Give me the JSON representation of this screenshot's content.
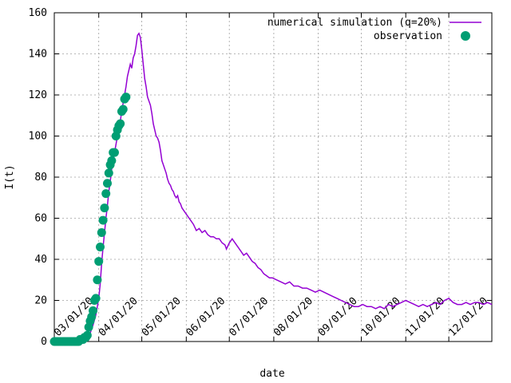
{
  "chart_data": {
    "type": "line+scatter",
    "title": "",
    "xlabel": "date",
    "ylabel": "I(t)",
    "x_axis": {
      "type": "date",
      "range": [
        "2020-03-01",
        "2020-12-31"
      ],
      "ticks": [
        "2020-03-01",
        "2020-04-01",
        "2020-05-01",
        "2020-06-01",
        "2020-07-01",
        "2020-08-01",
        "2020-09-01",
        "2020-10-01",
        "2020-11-01",
        "2020-12-01"
      ],
      "tick_labels": [
        "03/01/20",
        "04/01/20",
        "05/01/20",
        "06/01/20",
        "07/01/20",
        "08/01/20",
        "09/01/20",
        "10/01/20",
        "11/01/20",
        "12/01/20"
      ],
      "tick_label_rotation_deg": -45
    },
    "y_axis": {
      "range": [
        0,
        160
      ],
      "ticks": [
        0,
        20,
        40,
        60,
        80,
        100,
        120,
        140,
        160
      ],
      "tick_labels": [
        "0",
        "20",
        "40",
        "60",
        "80",
        "100",
        "120",
        "140",
        "160"
      ]
    },
    "grid": true,
    "legend_position": "top-right",
    "series": [
      {
        "name": "numerical simulation (q=20%)",
        "kind": "line",
        "color": "#9400d3",
        "points": [
          [
            "2020-03-01",
            0
          ],
          [
            "2020-03-10",
            0
          ],
          [
            "2020-03-16",
            0.5
          ],
          [
            "2020-03-21",
            1
          ],
          [
            "2020-03-24",
            2
          ],
          [
            "2020-03-26",
            4
          ],
          [
            "2020-03-28",
            8
          ],
          [
            "2020-03-30",
            13
          ],
          [
            "2020-03-31",
            17
          ],
          [
            "2020-04-01",
            21
          ],
          [
            "2020-04-02",
            28
          ],
          [
            "2020-04-03",
            38
          ],
          [
            "2020-04-04",
            46
          ],
          [
            "2020-04-05",
            53
          ],
          [
            "2020-04-06",
            60
          ],
          [
            "2020-04-07",
            66
          ],
          [
            "2020-04-08",
            73
          ],
          [
            "2020-04-09",
            78
          ],
          [
            "2020-04-10",
            84
          ],
          [
            "2020-04-11",
            88
          ],
          [
            "2020-04-12",
            92
          ],
          [
            "2020-04-13",
            96
          ],
          [
            "2020-04-14",
            100
          ],
          [
            "2020-04-15",
            104
          ],
          [
            "2020-04-16",
            107
          ],
          [
            "2020-04-17",
            112
          ],
          [
            "2020-04-18",
            116
          ],
          [
            "2020-04-19",
            120
          ],
          [
            "2020-04-20",
            124
          ],
          [
            "2020-04-21",
            129
          ],
          [
            "2020-04-22",
            132
          ],
          [
            "2020-04-23",
            135
          ],
          [
            "2020-04-24",
            133
          ],
          [
            "2020-04-25",
            138
          ],
          [
            "2020-04-26",
            140
          ],
          [
            "2020-04-27",
            144
          ],
          [
            "2020-04-28",
            149
          ],
          [
            "2020-04-29",
            150
          ],
          [
            "2020-04-30",
            148
          ],
          [
            "2020-05-01",
            142
          ],
          [
            "2020-05-02",
            135
          ],
          [
            "2020-05-03",
            128
          ],
          [
            "2020-05-04",
            124
          ],
          [
            "2020-05-05",
            119
          ],
          [
            "2020-05-06",
            117
          ],
          [
            "2020-05-07",
            115
          ],
          [
            "2020-05-08",
            111
          ],
          [
            "2020-05-09",
            106
          ],
          [
            "2020-05-10",
            103
          ],
          [
            "2020-05-11",
            100
          ],
          [
            "2020-05-12",
            99
          ],
          [
            "2020-05-13",
            97
          ],
          [
            "2020-05-14",
            93
          ],
          [
            "2020-05-15",
            88
          ],
          [
            "2020-05-16",
            86
          ],
          [
            "2020-05-17",
            84
          ],
          [
            "2020-05-18",
            82
          ],
          [
            "2020-05-19",
            79
          ],
          [
            "2020-05-20",
            77
          ],
          [
            "2020-05-21",
            76
          ],
          [
            "2020-05-22",
            74
          ],
          [
            "2020-05-23",
            73
          ],
          [
            "2020-05-24",
            71
          ],
          [
            "2020-05-25",
            70
          ],
          [
            "2020-05-26",
            71
          ],
          [
            "2020-05-27",
            68
          ],
          [
            "2020-05-28",
            67
          ],
          [
            "2020-05-29",
            65
          ],
          [
            "2020-05-30",
            64
          ],
          [
            "2020-05-31",
            63
          ],
          [
            "2020-06-02",
            61
          ],
          [
            "2020-06-04",
            59
          ],
          [
            "2020-06-06",
            57
          ],
          [
            "2020-06-08",
            54
          ],
          [
            "2020-06-10",
            55
          ],
          [
            "2020-06-12",
            53
          ],
          [
            "2020-06-14",
            54
          ],
          [
            "2020-06-16",
            52
          ],
          [
            "2020-06-18",
            51
          ],
          [
            "2020-06-20",
            51
          ],
          [
            "2020-06-22",
            50
          ],
          [
            "2020-06-24",
            50
          ],
          [
            "2020-06-26",
            48
          ],
          [
            "2020-06-28",
            47
          ],
          [
            "2020-06-29",
            45
          ],
          [
            "2020-07-01",
            48
          ],
          [
            "2020-07-03",
            50
          ],
          [
            "2020-07-05",
            48
          ],
          [
            "2020-07-07",
            46
          ],
          [
            "2020-07-09",
            44
          ],
          [
            "2020-07-11",
            42
          ],
          [
            "2020-07-13",
            43
          ],
          [
            "2020-07-15",
            41
          ],
          [
            "2020-07-17",
            39
          ],
          [
            "2020-07-19",
            38
          ],
          [
            "2020-07-21",
            36
          ],
          [
            "2020-07-23",
            35
          ],
          [
            "2020-07-25",
            33
          ],
          [
            "2020-07-27",
            32
          ],
          [
            "2020-07-29",
            31
          ],
          [
            "2020-07-31",
            31
          ],
          [
            "2020-08-03",
            30
          ],
          [
            "2020-08-06",
            29
          ],
          [
            "2020-08-09",
            28
          ],
          [
            "2020-08-12",
            29
          ],
          [
            "2020-08-15",
            27
          ],
          [
            "2020-08-18",
            27
          ],
          [
            "2020-08-21",
            26
          ],
          [
            "2020-08-24",
            26
          ],
          [
            "2020-08-27",
            25
          ],
          [
            "2020-08-30",
            24
          ],
          [
            "2020-09-02",
            25
          ],
          [
            "2020-09-05",
            24
          ],
          [
            "2020-09-08",
            23
          ],
          [
            "2020-09-11",
            22
          ],
          [
            "2020-09-14",
            21
          ],
          [
            "2020-09-17",
            20
          ],
          [
            "2020-09-20",
            19
          ],
          [
            "2020-09-23",
            18
          ],
          [
            "2020-09-26",
            17
          ],
          [
            "2020-09-29",
            17
          ],
          [
            "2020-10-02",
            18
          ],
          [
            "2020-10-05",
            17
          ],
          [
            "2020-10-08",
            17
          ],
          [
            "2020-10-11",
            16
          ],
          [
            "2020-10-14",
            17
          ],
          [
            "2020-10-17",
            16
          ],
          [
            "2020-10-20",
            18
          ],
          [
            "2020-10-23",
            17
          ],
          [
            "2020-10-26",
            18
          ],
          [
            "2020-10-29",
            19
          ],
          [
            "2020-11-01",
            20
          ],
          [
            "2020-11-04",
            19
          ],
          [
            "2020-11-07",
            18
          ],
          [
            "2020-11-10",
            17
          ],
          [
            "2020-11-13",
            18
          ],
          [
            "2020-11-16",
            17
          ],
          [
            "2020-11-19",
            18
          ],
          [
            "2020-11-22",
            19
          ],
          [
            "2020-11-25",
            18
          ],
          [
            "2020-11-28",
            20
          ],
          [
            "2020-12-01",
            21
          ],
          [
            "2020-12-04",
            19
          ],
          [
            "2020-12-07",
            18
          ],
          [
            "2020-12-10",
            18
          ],
          [
            "2020-12-13",
            19
          ],
          [
            "2020-12-16",
            18
          ],
          [
            "2020-12-19",
            19
          ],
          [
            "2020-12-22",
            19
          ],
          [
            "2020-12-25",
            18
          ],
          [
            "2020-12-28",
            19
          ],
          [
            "2020-12-31",
            18
          ]
        ]
      },
      {
        "name": "observation",
        "kind": "points",
        "color": "#009e73",
        "points": [
          [
            "2020-03-01",
            0
          ],
          [
            "2020-03-02",
            0
          ],
          [
            "2020-03-03",
            0
          ],
          [
            "2020-03-04",
            0
          ],
          [
            "2020-03-05",
            0
          ],
          [
            "2020-03-06",
            0
          ],
          [
            "2020-03-07",
            0
          ],
          [
            "2020-03-08",
            0
          ],
          [
            "2020-03-09",
            0
          ],
          [
            "2020-03-10",
            0
          ],
          [
            "2020-03-11",
            0
          ],
          [
            "2020-03-12",
            0
          ],
          [
            "2020-03-13",
            0
          ],
          [
            "2020-03-14",
            0
          ],
          [
            "2020-03-15",
            0
          ],
          [
            "2020-03-16",
            0
          ],
          [
            "2020-03-17",
            0
          ],
          [
            "2020-03-18",
            0
          ],
          [
            "2020-03-19",
            1
          ],
          [
            "2020-03-20",
            1
          ],
          [
            "2020-03-21",
            1
          ],
          [
            "2020-03-22",
            2
          ],
          [
            "2020-03-23",
            2
          ],
          [
            "2020-03-24",
            3
          ],
          [
            "2020-03-25",
            7
          ],
          [
            "2020-03-26",
            10
          ],
          [
            "2020-03-27",
            12
          ],
          [
            "2020-03-28",
            15
          ],
          [
            "2020-03-29",
            20
          ],
          [
            "2020-03-30",
            21
          ],
          [
            "2020-03-31",
            30
          ],
          [
            "2020-04-01",
            39
          ],
          [
            "2020-04-02",
            46
          ],
          [
            "2020-04-03",
            53
          ],
          [
            "2020-04-04",
            59
          ],
          [
            "2020-04-05",
            65
          ],
          [
            "2020-04-06",
            72
          ],
          [
            "2020-04-07",
            77
          ],
          [
            "2020-04-08",
            82
          ],
          [
            "2020-04-09",
            86
          ],
          [
            "2020-04-10",
            88
          ],
          [
            "2020-04-11",
            92
          ],
          [
            "2020-04-12",
            92
          ],
          [
            "2020-04-13",
            100
          ],
          [
            "2020-04-14",
            103
          ],
          [
            "2020-04-15",
            105
          ],
          [
            "2020-04-16",
            106
          ],
          [
            "2020-04-17",
            112
          ],
          [
            "2020-04-18",
            113
          ],
          [
            "2020-04-19",
            118
          ],
          [
            "2020-04-20",
            119
          ]
        ]
      }
    ]
  }
}
